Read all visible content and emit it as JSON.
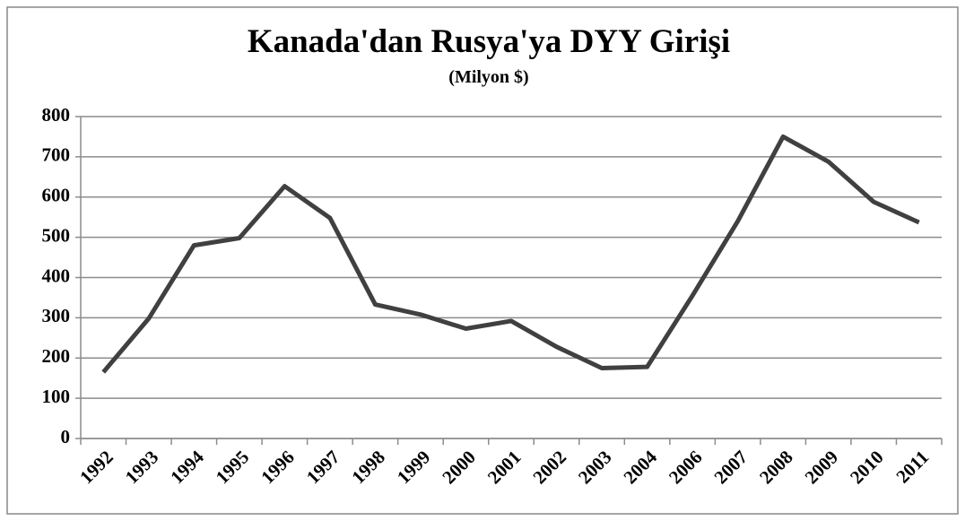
{
  "chart_data": {
    "type": "line",
    "title": "Kanada'dan Rusya'ya DYY Girişi",
    "subtitle": "(Milyon $)",
    "categories": [
      "1992",
      "1993",
      "1994",
      "1995",
      "1996",
      "1997",
      "1998",
      "1999",
      "2000",
      "2001",
      "2002",
      "2003",
      "2004",
      "2006",
      "2007",
      "2008",
      "2009",
      "2010",
      "2011"
    ],
    "values": [
      165,
      298,
      480,
      498,
      627,
      548,
      333,
      308,
      273,
      292,
      228,
      175,
      178,
      355,
      540,
      750,
      688,
      588,
      537
    ],
    "color": "#404040",
    "ylim": [
      0,
      800
    ],
    "yticks": [
      0,
      100,
      200,
      300,
      400,
      500,
      600,
      700,
      800
    ],
    "grid": true
  }
}
